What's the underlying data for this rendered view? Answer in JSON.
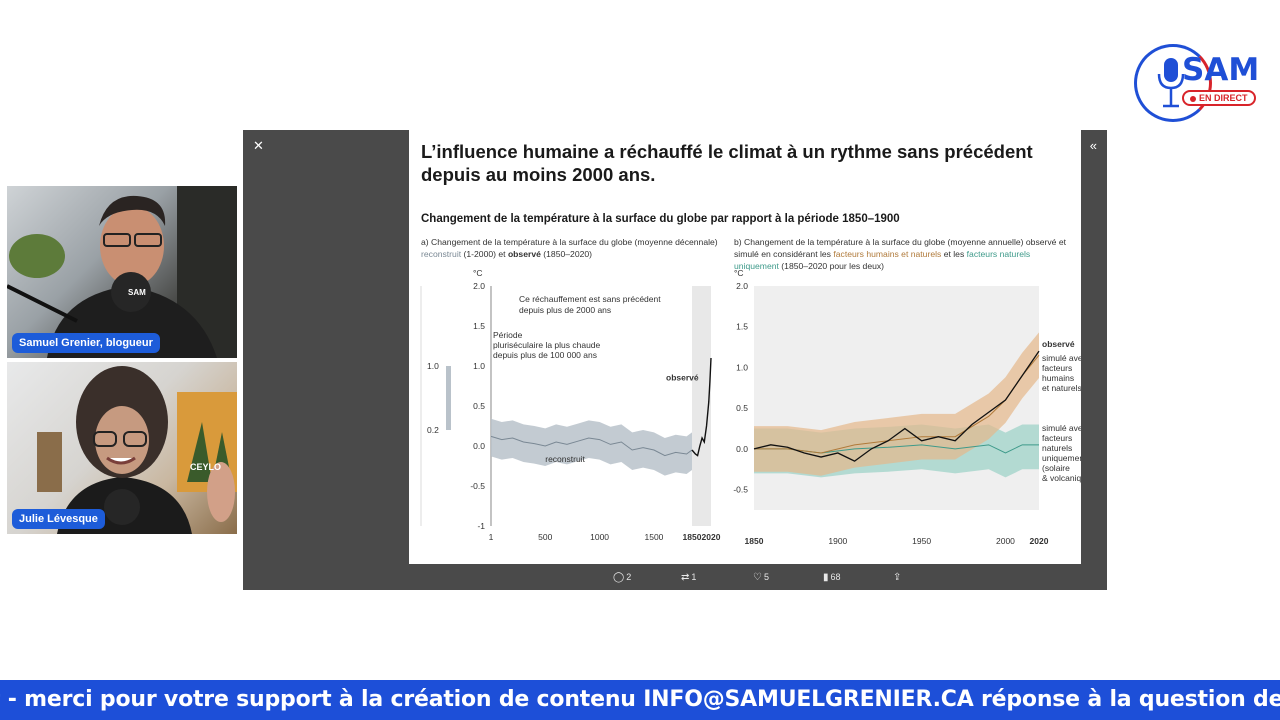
{
  "logo": {
    "name": "SAM",
    "badge": "EN DIRECT"
  },
  "participants": [
    {
      "name": "Samuel Grenier, blogueur",
      "mic_label": "SAM"
    },
    {
      "name": "Julie Lévesque",
      "poster_text": "CEYLO"
    }
  ],
  "slide": {
    "title": "L’influence humaine a réchauffé le climat à un rythme sans précédent depuis au moins 2000 ans.",
    "subtitle": "Changement de la température à la surface du globe par rapport à la période 1850–1900",
    "caption_a": {
      "part1": "a) Changement de la température à la surface du globe (moyenne décennale) ",
      "reconstruit": "reconstruit",
      "part2": " (1-2000) et ",
      "observe": "observé",
      "part3": " (1850–2020)"
    },
    "caption_b": {
      "part1": "b) Changement de la température à la surface du globe (moyenne annuelle) observé et simulé en considérant les ",
      "humains": "facteurs humains et naturels",
      "part2": " et les ",
      "naturels": "facteurs naturels uniquement",
      "part3": " (1850–2020 pour les deux)"
    }
  },
  "chart_data": [
    {
      "type": "line",
      "title": "a) Changement de la température à la surface du globe (moyenne décennale) reconstruit (1-2000) et observé (1850–2020)",
      "ylabel": "°C",
      "ylim": [
        -1,
        2
      ],
      "yticks": [
        "2.0",
        "1.5",
        "1.0",
        "0.5",
        "0.0",
        "-0.5",
        "-1"
      ],
      "xticks": [
        "1",
        "500",
        "1000",
        "1500",
        "1850",
        "2020"
      ],
      "inset": {
        "label_top": "1.0",
        "label_bottom": "0.2",
        "text": "Période pluriséculaire la plus chaude depuis plus de 100 000 ans"
      },
      "annotation": "Ce réchauffement est sans précédent depuis plus de 2000 ans",
      "series": [
        {
          "name": "reconstruit",
          "x": [
            1,
            100,
            200,
            300,
            400,
            500,
            600,
            700,
            800,
            900,
            1000,
            1100,
            1200,
            1300,
            1400,
            1500,
            1600,
            1700,
            1800,
            1850
          ],
          "y": [
            0.12,
            0.08,
            0.1,
            0.05,
            0.03,
            0.0,
            0.05,
            0.02,
            0.06,
            0.1,
            0.08,
            0.02,
            0.05,
            -0.05,
            -0.02,
            -0.05,
            -0.12,
            -0.08,
            -0.1,
            -0.05
          ]
        },
        {
          "name": "observé",
          "x": [
            1850,
            1880,
            1900,
            1920,
            1940,
            1960,
            1980,
            2000,
            2010,
            2020
          ],
          "y": [
            -0.05,
            -0.1,
            -0.12,
            0.0,
            0.1,
            0.05,
            0.25,
            0.55,
            0.8,
            1.1
          ]
        }
      ]
    },
    {
      "type": "line",
      "title": "b) Changement de la température à la surface du globe (moyenne annuelle) observé et simulé en considérant les facteurs humains et naturels et les facteurs naturels uniquement (1850–2020 pour les deux)",
      "ylabel": "°C",
      "ylim": [
        -0.75,
        2
      ],
      "yticks": [
        "2.0",
        "1.5",
        "1.0",
        "0.5",
        "0.0",
        "-0.5"
      ],
      "xticks": [
        "1850",
        "1900",
        "1950",
        "2000",
        "2020"
      ],
      "series": [
        {
          "name": "observé",
          "x": [
            1850,
            1860,
            1870,
            1880,
            1890,
            1900,
            1910,
            1920,
            1930,
            1940,
            1950,
            1960,
            1970,
            1980,
            1990,
            2000,
            2010,
            2020
          ],
          "y": [
            0.0,
            0.05,
            0.02,
            -0.05,
            -0.1,
            -0.05,
            -0.15,
            0.0,
            0.1,
            0.25,
            0.1,
            0.15,
            0.1,
            0.3,
            0.45,
            0.6,
            0.9,
            1.2
          ]
        },
        {
          "name": "simulé avec facteurs humains et naturels",
          "x": [
            1850,
            1870,
            1890,
            1910,
            1930,
            1950,
            1970,
            1990,
            2000,
            2010,
            2020
          ],
          "y": [
            0.0,
            0.0,
            -0.05,
            0.05,
            0.1,
            0.15,
            0.15,
            0.4,
            0.6,
            0.9,
            1.15
          ]
        },
        {
          "name": "simulé avec facteurs naturels uniquement (solaire & volcanique)",
          "x": [
            1850,
            1870,
            1890,
            1910,
            1930,
            1950,
            1970,
            1990,
            2000,
            2010,
            2020
          ],
          "y": [
            0.0,
            0.0,
            -0.05,
            0.0,
            0.02,
            0.05,
            0.0,
            0.05,
            -0.05,
            0.05,
            0.05
          ]
        }
      ],
      "labels": {
        "observe": "observé",
        "humains": [
          "simulé avec",
          "facteurs",
          "humains",
          "et naturels"
        ],
        "naturels": [
          "simulé avec",
          "facteurs",
          "naturels",
          "uniquement",
          "(solaire",
          "& volcanique)"
        ]
      }
    }
  ],
  "actions": {
    "replies": "2",
    "reposts": "1",
    "likes": "5",
    "views": "68"
  },
  "ticker": "t - merci pour votre support à la création de contenu INFO@SAMUELGRENIER.CA réponse à la question de",
  "colors": {
    "accent": "#1d4fd8",
    "live_red": "#d8242a",
    "reconstruit": "#7a8894",
    "humains": "#b07a3a",
    "naturels": "#3e9a8a"
  }
}
